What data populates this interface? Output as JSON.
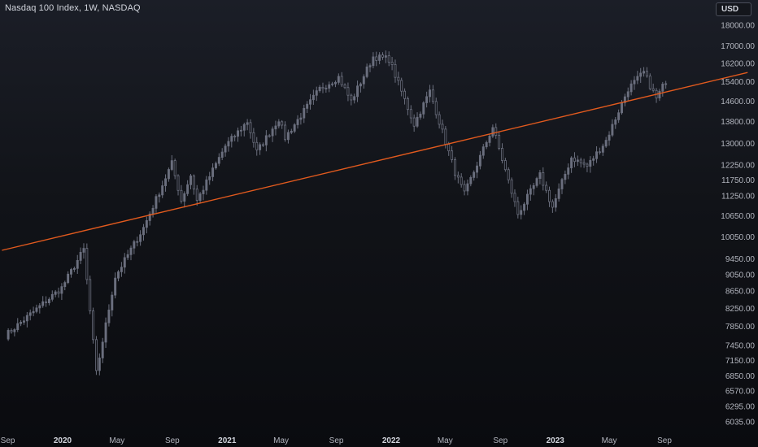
{
  "header": {
    "title": "Nasdaq 100 Index, 1W, NASDAQ"
  },
  "toolbar": {
    "currency": "USD"
  },
  "colors": {
    "candle": "#6b6f7e",
    "trendline": "#e15a1e",
    "text": "#b2b5be"
  },
  "chart_data": {
    "type": "candlestick",
    "title": "Nasdaq 100 Index, 1W, NASDAQ",
    "y_scale": "log",
    "ylim": [
      5950,
      18700
    ],
    "y_ticks": [
      18000,
      17000,
      16200,
      15400,
      14600,
      13800,
      13000,
      12250,
      11750,
      11250,
      10650,
      10050,
      9450,
      9050,
      8650,
      8250,
      7850,
      7450,
      7150,
      6850,
      6570,
      6295,
      6035
    ],
    "y_tick_labels": [
      "18000.00",
      "17000.00",
      "16200.00",
      "15400.00",
      "14600.00",
      "13800.00",
      "13000.00",
      "12250.00",
      "11750.00",
      "11250.00",
      "10650.00",
      "10050.00",
      "9450.00",
      "9050.00",
      "8650.00",
      "8250.00",
      "7850.00",
      "7450.00",
      "7150.00",
      "6850.00",
      "6570.00",
      "6295.00",
      "6035.00"
    ],
    "x_ticks": [
      {
        "label": "Sep",
        "date": "2019-09-01",
        "bold": false
      },
      {
        "label": "2020",
        "date": "2020-01-01",
        "bold": true
      },
      {
        "label": "May",
        "date": "2020-05-01",
        "bold": false
      },
      {
        "label": "Sep",
        "date": "2020-09-01",
        "bold": false
      },
      {
        "label": "2021",
        "date": "2021-01-01",
        "bold": true
      },
      {
        "label": "May",
        "date": "2021-05-01",
        "bold": false
      },
      {
        "label": "Sep",
        "date": "2021-09-01",
        "bold": false
      },
      {
        "label": "2022",
        "date": "2022-01-01",
        "bold": true
      },
      {
        "label": "May",
        "date": "2022-05-01",
        "bold": false
      },
      {
        "label": "Sep",
        "date": "2022-09-01",
        "bold": false
      },
      {
        "label": "2023",
        "date": "2023-01-01",
        "bold": true
      },
      {
        "label": "May",
        "date": "2023-05-01",
        "bold": false
      },
      {
        "label": "Sep",
        "date": "2023-09-01",
        "bold": false
      }
    ],
    "x_range": [
      "2019-08-19",
      "2024-03-04"
    ],
    "trendline": {
      "start": {
        "date": "2019-08-19",
        "price": 9680
      },
      "end": {
        "date": "2024-03-04",
        "price": 15800
      }
    },
    "key_closes": [
      {
        "date": "2019-08-26",
        "close": 7650
      },
      {
        "date": "2019-12-30",
        "close": 8730
      },
      {
        "date": "2020-02-17",
        "close": 9700
      },
      {
        "date": "2020-03-16",
        "close": 6900
      },
      {
        "date": "2020-04-27",
        "close": 9000
      },
      {
        "date": "2020-06-29",
        "close": 10300
      },
      {
        "date": "2020-08-31",
        "close": 12300
      },
      {
        "date": "2020-09-21",
        "close": 11100
      },
      {
        "date": "2020-10-12",
        "close": 11900
      },
      {
        "date": "2020-10-26",
        "close": 11100
      },
      {
        "date": "2020-12-28",
        "close": 12900
      },
      {
        "date": "2021-02-15",
        "close": 13800
      },
      {
        "date": "2021-03-08",
        "close": 12700
      },
      {
        "date": "2021-04-26",
        "close": 13900
      },
      {
        "date": "2021-05-10",
        "close": 13200
      },
      {
        "date": "2021-07-26",
        "close": 15100
      },
      {
        "date": "2021-09-06",
        "close": 15600
      },
      {
        "date": "2021-10-04",
        "close": 14600
      },
      {
        "date": "2021-11-22",
        "close": 16500
      },
      {
        "date": "2021-12-27",
        "close": 16400
      },
      {
        "date": "2022-02-21",
        "close": 13700
      },
      {
        "date": "2022-03-28",
        "close": 15000
      },
      {
        "date": "2022-05-23",
        "close": 12000
      },
      {
        "date": "2022-06-13",
        "close": 11300
      },
      {
        "date": "2022-08-15",
        "close": 13600
      },
      {
        "date": "2022-10-10",
        "close": 10700
      },
      {
        "date": "2022-11-28",
        "close": 11900
      },
      {
        "date": "2022-12-26",
        "close": 10900
      },
      {
        "date": "2023-02-06",
        "close": 12500
      },
      {
        "date": "2023-03-13",
        "close": 12200
      },
      {
        "date": "2023-04-24",
        "close": 13100
      },
      {
        "date": "2023-06-12",
        "close": 15100
      },
      {
        "date": "2023-07-17",
        "close": 15800
      },
      {
        "date": "2023-08-14",
        "close": 14700
      },
      {
        "date": "2023-09-04",
        "close": 15450
      }
    ]
  }
}
